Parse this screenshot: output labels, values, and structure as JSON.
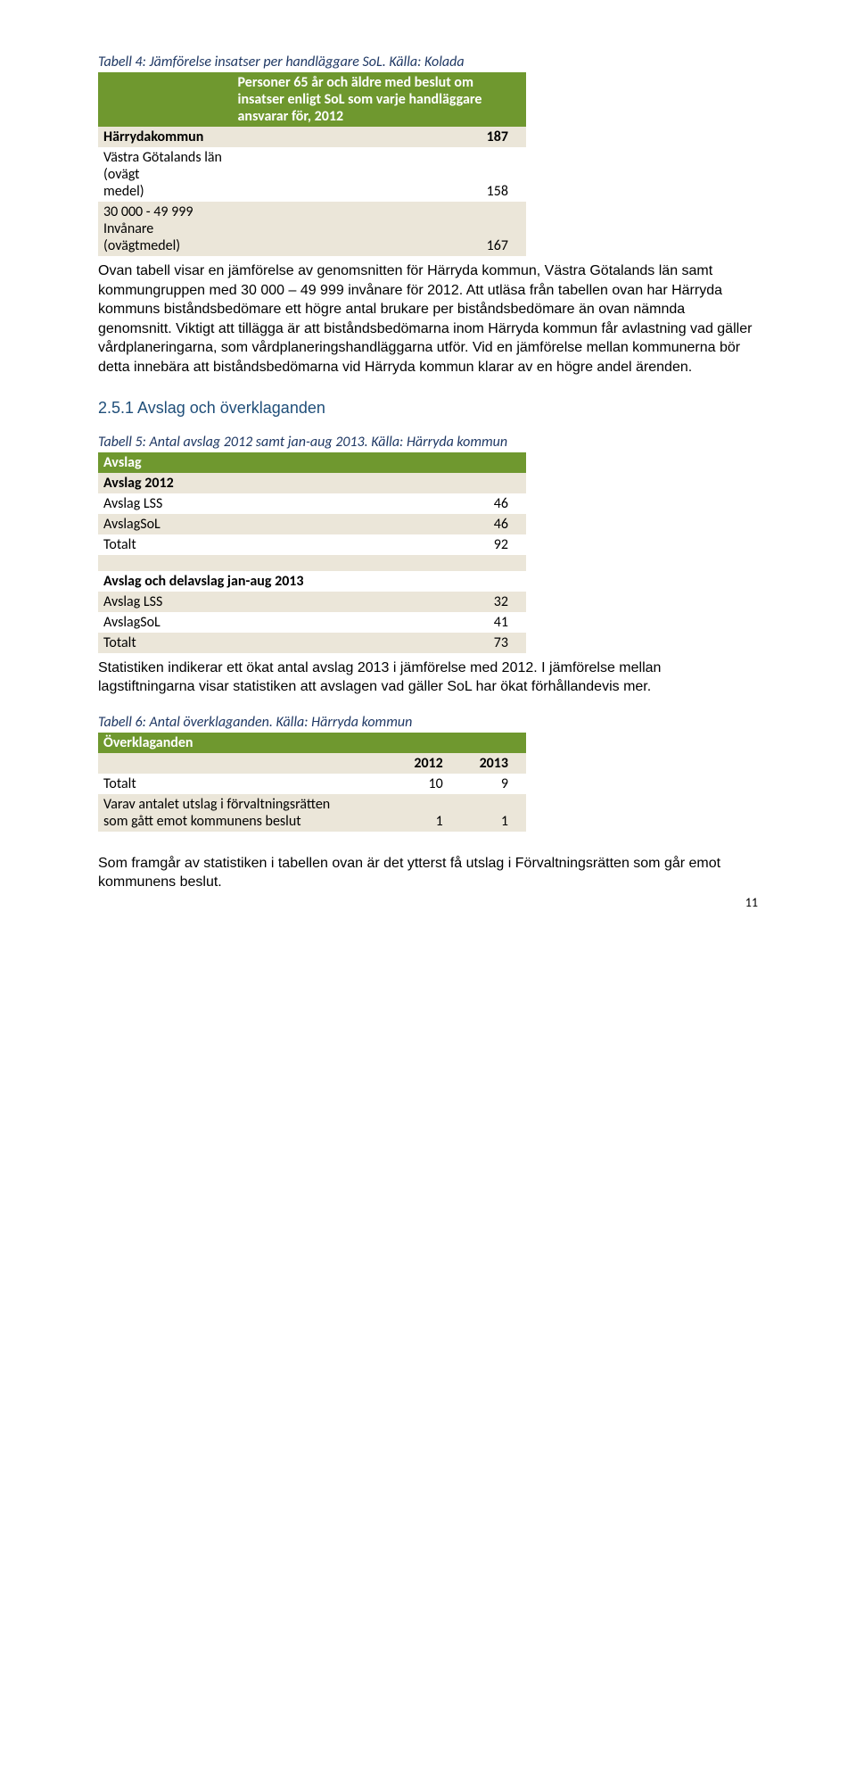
{
  "table4": {
    "caption": "Tabell 4: Jämförelse insatser per handläggare SoL. Källa: Kolada",
    "header": "Personer 65 år och äldre med beslut om insatser enligt SoL som varje handläggare ansvarar för, 2012",
    "rows": [
      {
        "label": "Härrydakommun",
        "value": "187",
        "cls": "section-beige"
      },
      {
        "label_a": "Västra Götalands län (ovägt",
        "label_b": "medel)",
        "value": "158",
        "cls": "row-white"
      },
      {
        "label_a": "30 000 - 49 999 Invånare",
        "label_b": "(ovägtmedel)",
        "value": "167",
        "cls": "row-beige2"
      }
    ]
  },
  "para1": "Ovan tabell visar en jämförelse av genomsnitten för Härryda kommun, Västra Götalands län samt kommungruppen med 30 000 – 49 999 invånare för 2012. Att utläsa från tabellen ovan har Härryda kommuns biståndsbedömare ett högre antal brukare per biståndsbedömare än ovan nämnda genomsnitt. Viktigt att tillägga är att biståndsbedömarna inom Härryda kommun får avlastning vad gäller vårdplaneringarna, som vårdplaneringshandläggarna utför. Vid en jämförelse mellan kommunerna bör detta innebära att biståndsbedömarna vid Härryda kommun klarar av en högre andel ärenden.",
  "heading251": "2.5.1 Avslag och överklaganden",
  "table5": {
    "caption": "Tabell 5: Antal avslag 2012 samt jan-aug 2013. Källa: Härryda kommun",
    "title": "Avslag",
    "section1": "Avslag 2012",
    "rows1": [
      {
        "label": "Avslag LSS",
        "value": "46",
        "cls": "row-white"
      },
      {
        "label": "AvslagSoL",
        "value": "46",
        "cls": "row-beige2"
      },
      {
        "label": "Totalt",
        "value": "92",
        "cls": "row-white"
      }
    ],
    "section2": "Avslag och delavslag jan-aug 2013",
    "rows2": [
      {
        "label": "Avslag LSS",
        "value": "32",
        "cls": "row-beige2"
      },
      {
        "label": "AvslagSoL",
        "value": "41",
        "cls": "row-white"
      },
      {
        "label": "Totalt",
        "value": "73",
        "cls": "row-beige2"
      }
    ]
  },
  "para2": "Statistiken indikerar ett ökat antal avslag 2013 i jämförelse med 2012. I jämförelse mellan lagstiftningarna visar statistiken att avslagen vad gäller SoL har ökat förhållandevis mer.",
  "table6": {
    "caption": "Tabell 6: Antal överklaganden. Källa: Härryda kommun",
    "title": "Överklaganden",
    "col1": "2012",
    "col2": "2013",
    "rows": [
      {
        "label": "Totalt",
        "v1": "10",
        "v2": "9",
        "cls": "row-white"
      },
      {
        "label_a": "Varav antalet utslag i förvaltningsrätten",
        "label_b": "som gått emot kommunens beslut",
        "v1": "1",
        "v2": "1",
        "cls": "row-beige2"
      }
    ]
  },
  "para3": "Som framgår av statistiken i tabellen ovan är det ytterst få utslag i Förvaltningsrätten som går emot kommunens beslut.",
  "pagenum": "11"
}
